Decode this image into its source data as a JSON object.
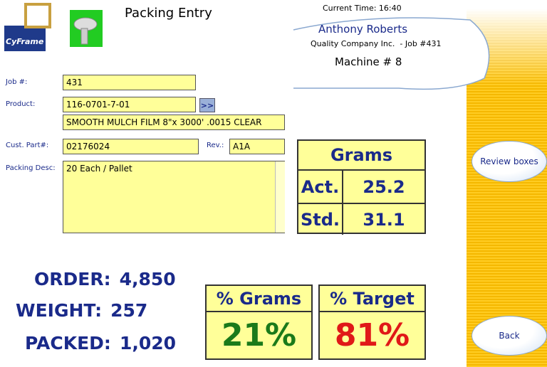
{
  "logo": {
    "text": "CyFrame"
  },
  "header": {
    "title": "Packing Entry",
    "current_time": "Current Time: 16:40",
    "operator": "Anthony Roberts",
    "company_job": "Quality Company Inc.  - Job #431",
    "machine": "Machine # 8"
  },
  "form": {
    "job": {
      "label": "Job #:",
      "value": "431"
    },
    "product": {
      "label": "Product:",
      "value": "116-0701-7-01",
      "button": ">>",
      "description": "SMOOTH MULCH FILM 8\"x 3000' .0015 CLEAR"
    },
    "cust_part": {
      "label": "Cust. Part#:",
      "value": "02176024"
    },
    "rev": {
      "label": "Rev.:",
      "value": "A1A"
    },
    "packing_desc": {
      "label": "Packing Desc:",
      "value": "20 Each / Pallet"
    }
  },
  "grams_table": {
    "title": "Grams",
    "rows": [
      [
        "Act.",
        "25.2"
      ],
      [
        "Std.",
        "31.1"
      ]
    ]
  },
  "totals": [
    [
      "ORDER:",
      "4,850"
    ],
    [
      "WEIGHT:",
      "257"
    ],
    [
      "PACKED:",
      "1,020"
    ]
  ],
  "percent_boxes": [
    {
      "title": "% Grams",
      "value": "21%"
    },
    {
      "title": "% Target",
      "value": "81%"
    }
  ],
  "buttons": {
    "review": "Review boxes",
    "back": "Back"
  }
}
